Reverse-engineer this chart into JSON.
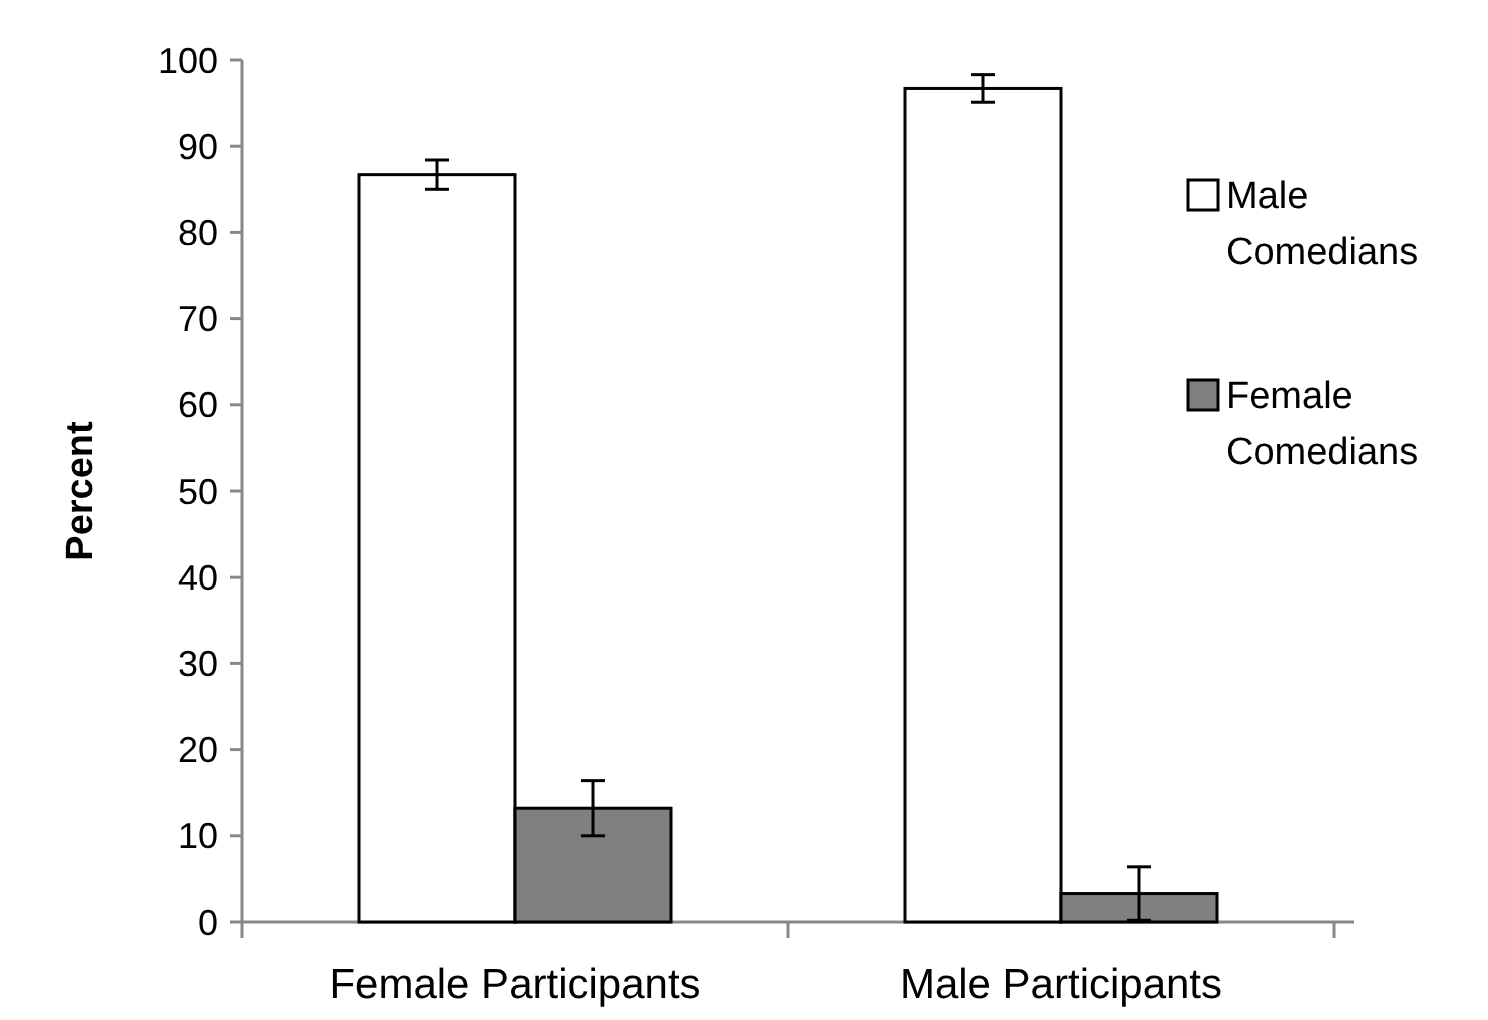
{
  "chart_data": {
    "type": "bar",
    "ylabel": "Percent",
    "categories": [
      "Female Participants",
      "Male Participants"
    ],
    "series": [
      {
        "name": "Male Comedians",
        "color": "#ffffff",
        "values": [
          86.7,
          96.7
        ],
        "errors": [
          1.7,
          1.6
        ]
      },
      {
        "name": "Female Comedians",
        "color": "#808080",
        "values": [
          13.2,
          3.3
        ],
        "errors": [
          3.2,
          3.1
        ]
      }
    ],
    "ylim": [
      0,
      100
    ],
    "yticks": [
      0,
      10,
      20,
      30,
      40,
      50,
      60,
      70,
      80,
      90,
      100
    ],
    "grid": false,
    "legend": "right"
  }
}
